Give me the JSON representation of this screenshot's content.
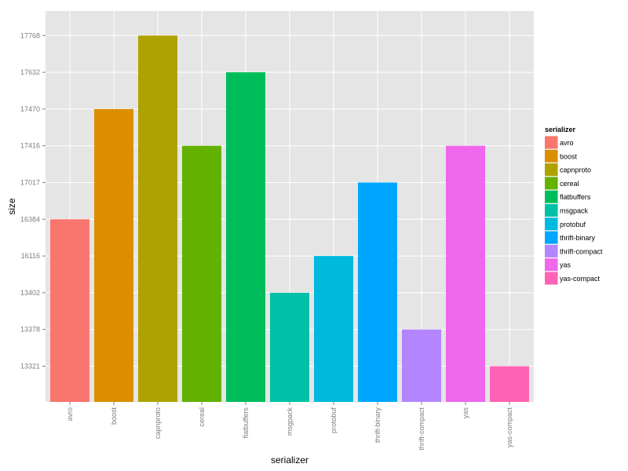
{
  "chart_data": {
    "type": "bar",
    "categories": [
      "avro",
      "boost",
      "capnproto",
      "cereal",
      "flatbuffers",
      "msgpack",
      "protobuf",
      "thrift-binary",
      "thrift-compact",
      "yas",
      "yas-compact"
    ],
    "values": [
      16384,
      17470,
      17768,
      17416,
      17632,
      13402,
      16116,
      17017,
      13378,
      17416,
      13321
    ],
    "y_ticks": [
      "13321",
      "13378",
      "13402",
      "16116",
      "16384",
      "17017",
      "17416",
      "17470",
      "17632",
      "17768"
    ],
    "xlabel": "serializer",
    "ylabel": "size",
    "legend_title": "serializer",
    "legend_position": "right",
    "grid": true,
    "y_axis_scale": "discrete",
    "colors": [
      "#F8766D",
      "#DB8E00",
      "#AEA200",
      "#64B200",
      "#00BD5C",
      "#00C1A7",
      "#00BADE",
      "#00A6FF",
      "#B385FF",
      "#EF67EB",
      "#FF63B6"
    ],
    "panel_background": "#E5E5E5",
    "grid_color": "#FFFFFF"
  }
}
